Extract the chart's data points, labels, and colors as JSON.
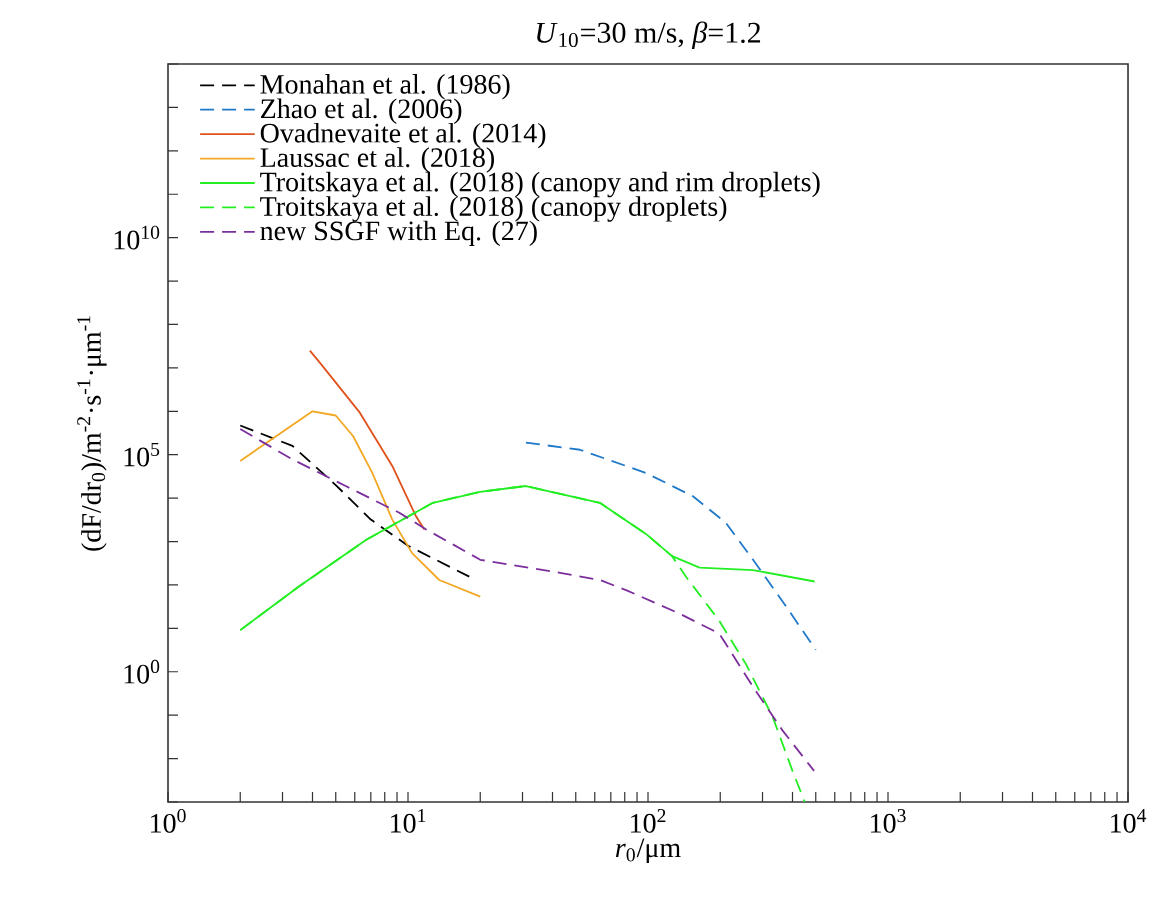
{
  "chart_data": {
    "type": "line",
    "title": "*U*$_{10}$=30 m/s, *β*=1.2",
    "xlabel": "*r*$_{0}$/μm",
    "ylabel": "(dF/dr$_{0}$)/m$^{-2}$·s$^{-1}$·μm$^{-1}$",
    "log": "xy",
    "legend": "top left",
    "grid": false,
    "xlim": [
      1,
      10000
    ],
    "ylim": [
      0.001,
      100000000000000.0
    ],
    "xticks": [
      {
        "value": 1,
        "label": "10$^{0}$"
      },
      {
        "value": 10,
        "label": "10$^{1}$"
      },
      {
        "value": 100,
        "label": "10$^{2}$"
      },
      {
        "value": 1000,
        "label": "10$^{3}$"
      },
      {
        "value": 10000,
        "label": "10$^{4}$"
      },
      {
        "value": 2,
        "label": null
      },
      {
        "value": 3,
        "label": null
      },
      {
        "value": 4,
        "label": null
      },
      {
        "value": 5,
        "label": null
      },
      {
        "value": 6,
        "label": null
      },
      {
        "value": 7,
        "label": null
      },
      {
        "value": 8,
        "label": null
      },
      {
        "value": 9,
        "label": null
      },
      {
        "value": 20,
        "label": null
      },
      {
        "value": 30,
        "label": null
      },
      {
        "value": 40,
        "label": null
      },
      {
        "value": 50,
        "label": null
      },
      {
        "value": 60,
        "label": null
      },
      {
        "value": 70,
        "label": null
      },
      {
        "value": 80,
        "label": null
      },
      {
        "value": 90,
        "label": null
      },
      {
        "value": 200,
        "label": null
      },
      {
        "value": 300,
        "label": null
      },
      {
        "value": 400,
        "label": null
      },
      {
        "value": 500,
        "label": null
      },
      {
        "value": 600,
        "label": null
      },
      {
        "value": 700,
        "label": null
      },
      {
        "value": 800,
        "label": null
      },
      {
        "value": 900,
        "label": null
      },
      {
        "value": 2000,
        "label": null
      },
      {
        "value": 3000,
        "label": null
      },
      {
        "value": 4000,
        "label": null
      },
      {
        "value": 5000,
        "label": null
      },
      {
        "value": 6000,
        "label": null
      },
      {
        "value": 7000,
        "label": null
      },
      {
        "value": 8000,
        "label": null
      },
      {
        "value": 9000,
        "label": null
      }
    ],
    "yticks": [
      {
        "value": 1,
        "label": "10$^{0}$"
      },
      {
        "value": 100000,
        "label": "10$^{5}$"
      },
      {
        "value": 10000000000.0,
        "label": "10$^{10}$"
      },
      {
        "value": 0.001,
        "label": null
      },
      {
        "value": 0.01,
        "label": null
      },
      {
        "value": 0.1,
        "label": null
      },
      {
        "value": 10,
        "label": null
      },
      {
        "value": 100,
        "label": null
      },
      {
        "value": 1000,
        "label": null
      },
      {
        "value": 10000,
        "label": null
      },
      {
        "value": 1000000.0,
        "label": null
      },
      {
        "value": 10000000.0,
        "label": null
      },
      {
        "value": 100000000.0,
        "label": null
      },
      {
        "value": 1000000000.0,
        "label": null
      },
      {
        "value": 100000000000.0,
        "label": null
      },
      {
        "value": 1000000000000.0,
        "label": null
      },
      {
        "value": 10000000000000.0,
        "label": null
      },
      {
        "value": 100000000000000.0,
        "label": null
      }
    ],
    "series": [
      {
        "name": "Monahan et al. (1986)",
        "color": "#000000",
        "line_style": "dashed",
        "x": [
          2,
          3.3,
          5,
          7,
          10,
          18
        ],
        "values": [
          470000,
          160000,
          20000,
          3200,
          800,
          155
        ]
      },
      {
        "name": "Zhao et al. (2006)",
        "color": "#1f78c8",
        "line_style": "dashed",
        "x": [
          31,
          52,
          98,
          154,
          211,
          274,
          376,
          500
        ],
        "values": [
          190000,
          130000,
          38000,
          11000,
          2700,
          380,
          32,
          3.2
        ]
      },
      {
        "name": "Ovadnevaite et al. (2014)",
        "color": "#e0521c",
        "line_style": "solid",
        "x": [
          3.9,
          4.3,
          6.3,
          8.6,
          10.8,
          11.7
        ],
        "values": [
          25000000,
          13000000,
          930000,
          55000,
          3800,
          1900
        ]
      },
      {
        "name": "Laussac et al. (2018)",
        "color": "#f2a824",
        "line_style": "solid",
        "x": [
          2,
          4,
          5,
          5.9,
          7.1,
          8.6,
          10.4,
          13.5,
          20
        ],
        "values": [
          72000,
          1000000,
          800000,
          270000,
          38000,
          3200,
          540,
          130,
          54
        ]
      },
      {
        "name": "Troitskaya et al. (2018) (canopy and rim droplets)",
        "color": "#22ee22",
        "line_style": "solid",
        "x": [
          2,
          3.5,
          6.7,
          12.7,
          20,
          31,
          63,
          98,
          126,
          164,
          274,
          495
        ],
        "values": [
          9.1,
          91,
          1100,
          7800,
          14000,
          19000,
          7800,
          1500,
          460,
          250,
          220,
          120
        ]
      },
      {
        "name": "Troitskaya et al. (2018) (canopy droplets)",
        "color": "#22ee22",
        "line_style": "dashed",
        "x": [
          2,
          3.5,
          6.7,
          12.7,
          20,
          31,
          63,
          98,
          126,
          144,
          198,
          256,
          331,
          400,
          450
        ],
        "values": [
          9.1,
          91,
          1100,
          7800,
          14000,
          19000,
          7800,
          1500,
          460,
          155,
          15,
          1.5,
          0.09,
          0.0052,
          0.001
        ]
      },
      {
        "name": "new SSGF with Eq. (27)",
        "color": "#7b2f9c",
        "line_style": "dashed",
        "x": [
          2,
          3.3,
          5.5,
          9.2,
          11.9,
          20,
          43,
          63,
          81,
          135,
          198,
          274,
          364,
          492
        ],
        "values": [
          390000,
          78000,
          19000,
          4600,
          1900,
          380,
          190,
          130,
          76,
          22,
          7.6,
          0.45,
          0.044,
          0.0052
        ]
      }
    ]
  }
}
